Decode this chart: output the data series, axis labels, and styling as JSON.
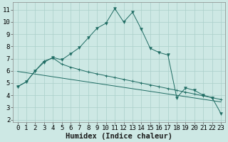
{
  "bg_color": "#cde8e4",
  "grid_color": "#aacfca",
  "line_color": "#1e6b62",
  "xlabel": "Humidex (Indice chaleur)",
  "xlabel_fontsize": 7.5,
  "tick_fontsize": 6.5,
  "ylim": [
    1.8,
    11.6
  ],
  "xlim": [
    -0.5,
    23.5
  ],
  "yticks": [
    2,
    3,
    4,
    5,
    6,
    7,
    8,
    9,
    10,
    11
  ],
  "xticks": [
    0,
    1,
    2,
    3,
    4,
    5,
    6,
    7,
    8,
    9,
    10,
    11,
    12,
    13,
    14,
    15,
    16,
    17,
    18,
    19,
    20,
    21,
    22,
    23
  ],
  "line1_x": [
    0,
    1,
    2,
    3,
    4,
    5,
    6,
    7,
    8,
    9,
    10,
    11,
    12,
    13,
    14,
    15,
    16,
    17,
    18,
    19,
    20,
    21,
    22,
    23
  ],
  "line1_y": [
    4.7,
    5.1,
    6.0,
    6.7,
    7.1,
    6.9,
    7.4,
    7.9,
    8.7,
    9.5,
    9.9,
    11.1,
    10.0,
    10.8,
    9.4,
    7.85,
    7.5,
    7.3,
    3.8,
    4.6,
    4.4,
    4.0,
    3.8,
    2.5
  ],
  "line2_x": [
    0,
    23
  ],
  "line2_y": [
    5.95,
    3.45
  ],
  "line3_x": [
    0,
    1,
    2,
    3,
    4,
    5,
    6,
    7,
    8,
    9,
    10,
    11,
    12,
    13,
    14,
    15,
    16,
    17,
    18,
    19,
    20,
    21,
    22,
    23
  ],
  "line3_y": [
    4.7,
    5.1,
    6.0,
    6.8,
    7.05,
    6.55,
    6.3,
    6.1,
    5.9,
    5.75,
    5.6,
    5.45,
    5.3,
    5.15,
    5.0,
    4.85,
    4.7,
    4.55,
    4.4,
    4.25,
    4.1,
    3.95,
    3.8,
    3.65
  ],
  "spine_color": "#888888"
}
